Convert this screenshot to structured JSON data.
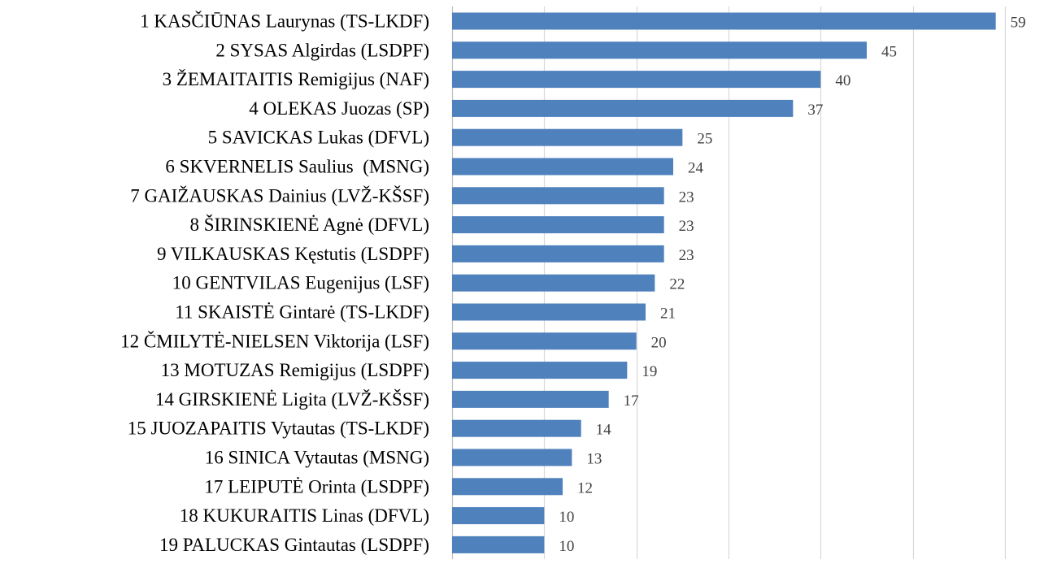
{
  "chart_data": {
    "type": "bar",
    "orientation": "horizontal",
    "title": "",
    "xlabel": "",
    "ylabel": "",
    "xlim": [
      0,
      60
    ],
    "grid": true,
    "legend": "none",
    "bar_color": "#4f81bd",
    "grid_color": "#d9d9d9",
    "categories": [
      "1 KASČIŪNAS Laurynas (TS-LKDF)",
      "2 SYSAS Algirdas (LSDPF)",
      "3 ŽEMAITAITIS Remigijus (NAF)",
      "4 OLEKAS Juozas (SP)",
      "5 SAVICKAS Lukas (DFVL)",
      "6 SKVERNELIS Saulius  (MSNG)",
      "7 GAIŽAUSKAS Dainius (LVŽ-KŠSF)",
      "8 ŠIRINSKIENĖ Agnė (DFVL)",
      "9 VILKAUSKAS Kęstutis (LSDPF)",
      "10 GENTVILAS Eugenijus (LSF)",
      "11 SKAISTĖ Gintarė (TS-LKDF)",
      "12 ČMILYTĖ-NIELSEN Viktorija (LSF)",
      "13 MOTUZAS Remigijus (LSDPF)",
      "14 GIRSKIENĖ Ligita (LVŽ-KŠSF)",
      "15 JUOZAPAITIS Vytautas (TS-LKDF)",
      "16 SINICA Vytautas (MSNG)",
      "17 LEIPUTĖ Orinta (LSDPF)",
      "18 KUKURAITIS Linas (DFVL)",
      "19 PALUCKAS Gintautas (LSDPF)"
    ],
    "values": [
      59,
      45,
      40,
      37,
      25,
      24,
      23,
      23,
      23,
      22,
      21,
      20,
      19,
      17,
      14,
      13,
      12,
      10,
      10
    ]
  }
}
